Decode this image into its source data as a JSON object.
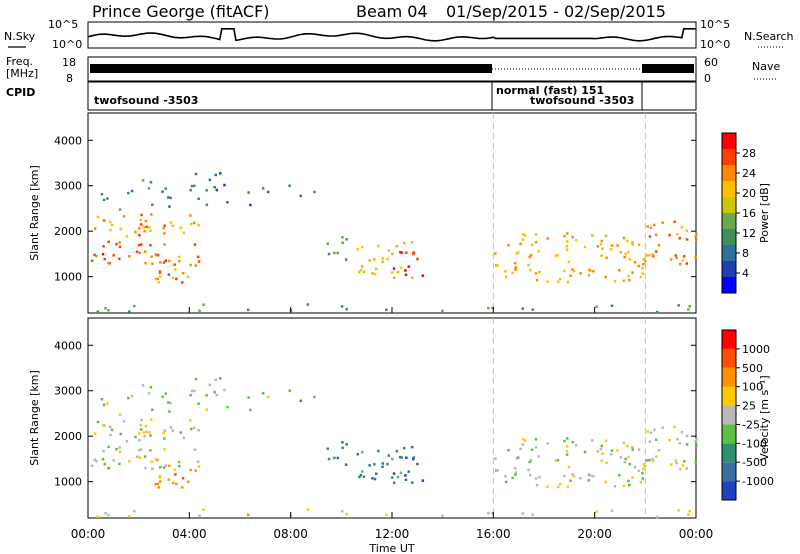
{
  "header": {
    "station": "Prince George (fitACF)",
    "beam": "Beam 04",
    "date_range": "01/Sep/2015 - 02/Sep/2015"
  },
  "labels": {
    "nsky": "N.Sky",
    "nsky_ticks": [
      "10^5",
      "10^0"
    ],
    "nsearch": "N.Search",
    "nsearch_ticks": [
      "10^5",
      "10^0"
    ],
    "freq": "Freq.",
    "freq_unit": "[MHz]",
    "freq_ticks": [
      "18",
      "8"
    ],
    "nave": "Nave",
    "nave_ticks": [
      "60",
      "0"
    ],
    "cpid": "CPID",
    "cpid_segments": [
      "twofsound -3503",
      "normal (fast) 151",
      "twofsound -3503"
    ]
  },
  "chart_data": [
    {
      "type": "heatmap",
      "name": "power",
      "ylabel": "Slant Range [km]",
      "xlabel": "",
      "yticks": [
        1000,
        2000,
        3000,
        4000
      ],
      "ylim": [
        200,
        4600
      ],
      "colorbar": {
        "label": "Power [dB]",
        "ticks": [
          "28",
          "24",
          "20",
          "16",
          "12",
          "8",
          "4"
        ],
        "colors": [
          "#0000ff",
          "#1f3fb0",
          "#2e6f9e",
          "#3f8f5f",
          "#6aa84f",
          "#c8c800",
          "#ffc000",
          "#ff8a00",
          "#ff4000",
          "#ff0000"
        ]
      }
    },
    {
      "type": "heatmap",
      "name": "velocity",
      "ylabel": "Slant Range [km]",
      "xlabel": "Time UT",
      "yticks": [
        1000,
        2000,
        3000,
        4000
      ],
      "ylim": [
        200,
        4600
      ],
      "xticks": [
        "00:00",
        "04:00",
        "08:00",
        "12:00",
        "16:00",
        "20:00",
        "00:00"
      ],
      "colorbar": {
        "label": "Velocity [m s⁻¹]",
        "ticks": [
          "1000",
          "500",
          "100",
          "25",
          "-25",
          "-100",
          "-500",
          "-1000"
        ],
        "colors": [
          "#2040c0",
          "#3a6ea0",
          "#2f8f6f",
          "#5cc040",
          "#b8b8b8",
          "#ffc800",
          "#ff9000",
          "#ff5000",
          "#ff0000"
        ]
      }
    }
  ]
}
